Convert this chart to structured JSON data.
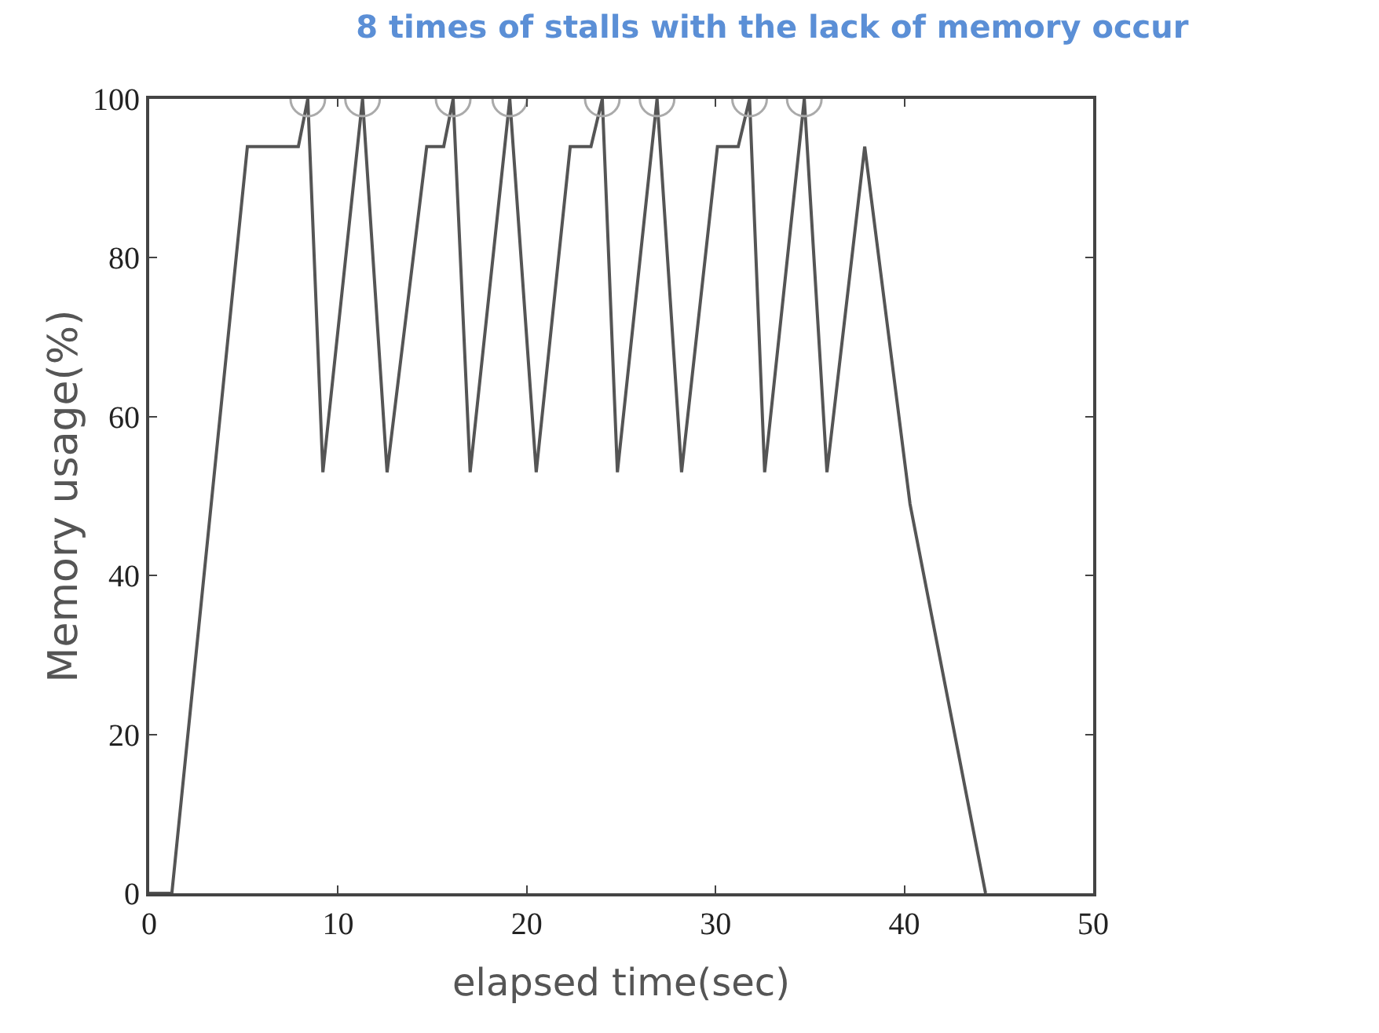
{
  "chart_data": {
    "type": "line",
    "title": "8 times of stalls with the lack of memory occur",
    "xlabel": "elapsed time(sec)",
    "ylabel": "Memory usage(%)",
    "x": [
      0,
      1.2,
      5.2,
      7.9,
      8.4,
      9.2,
      11.3,
      12.6,
      14.7,
      15.6,
      16.1,
      17.0,
      19.1,
      20.5,
      22.3,
      23.4,
      24.0,
      24.8,
      26.9,
      28.2,
      30.1,
      31.2,
      31.8,
      32.6,
      34.7,
      35.9,
      37.9,
      40.3,
      44.3
    ],
    "series": [
      {
        "color": "#555555",
        "values": [
          0,
          0,
          94,
          94,
          100,
          53,
          100,
          53,
          94,
          94,
          100,
          53,
          100,
          53,
          94,
          94,
          100,
          53,
          100,
          53,
          94,
          94,
          100,
          53,
          100,
          53,
          94,
          49,
          0
        ]
      },
      {
        "type": "scatter",
        "marker": "circle",
        "color": "#aaaaaa",
        "x": [
          8.4,
          11.3,
          16.1,
          19.1,
          24.0,
          26.9,
          31.8,
          34.7
        ],
        "values": [
          100,
          100,
          100,
          100,
          100,
          100,
          100,
          100
        ]
      }
    ],
    "xlim": [
      0,
      50
    ],
    "xticks": [
      0,
      10,
      20,
      30,
      40,
      50
    ],
    "ylim": [
      0,
      100
    ],
    "yticks": [
      0,
      20,
      40,
      60,
      80,
      100
    ],
    "marker": "none",
    "line_style": "solid"
  }
}
